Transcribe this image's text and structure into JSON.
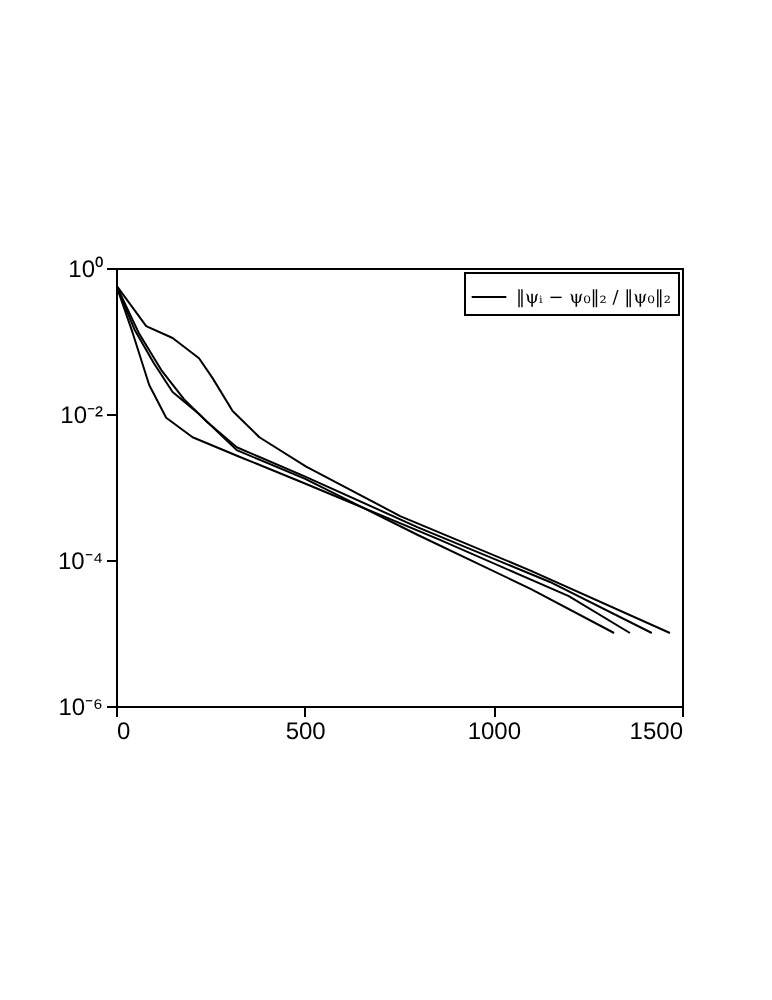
{
  "chart_data": {
    "type": "line",
    "log": "y",
    "legend": "top right",
    "grid": false,
    "marker": "none",
    "line_style": "solid",
    "xlim": [
      0,
      1500
    ],
    "xticks": [
      0,
      500,
      1000,
      1500
    ],
    "ylim": [
      1e-06,
      1
    ],
    "yticks": [
      {
        "value": 1,
        "label": "10⁰"
      },
      {
        "value": 0.01,
        "label": "10⁻²"
      },
      {
        "value": 0.0001,
        "label": "10⁻⁴"
      },
      {
        "value": 1e-06,
        "label": "10⁻⁶"
      }
    ],
    "series": [
      {
        "name": "‖ψᵢ − ψ₀‖₂ / ‖ψ₀‖₂",
        "color": "#000000",
        "x": [
          0,
          60,
          120,
          180,
          240,
          320,
          500,
          800,
          1150,
          1420
        ],
        "values": [
          0.59,
          0.13,
          0.04,
          0.016,
          0.0079,
          0.0035,
          0.0014,
          0.00028,
          5e-05,
          1e-05
        ]
      },
      {
        "color": "#000000",
        "x": [
          0,
          80,
          150,
          220,
          256,
          309,
          380,
          504,
          753,
          1100,
          1468
        ],
        "values": [
          0.59,
          0.16,
          0.11,
          0.058,
          0.031,
          0.011,
          0.0048,
          0.0019,
          0.0004,
          7.1e-05,
          1e-05
        ]
      },
      {
        "color": "#000000",
        "x": [
          0,
          44,
          88,
          133,
          203,
          327,
          504,
          857,
          1200,
          1362
        ],
        "values": [
          0.59,
          0.13,
          0.025,
          0.0089,
          0.0048,
          0.0026,
          0.0011,
          0.00019,
          3.2e-05,
          1e-05
        ]
      },
      {
        "color": "#000000",
        "x": [
          0,
          50,
          100,
          150,
          220,
          320,
          500,
          800,
          1100,
          1320
        ],
        "values": [
          0.59,
          0.14,
          0.05,
          0.02,
          0.01,
          0.0032,
          0.0013,
          0.00022,
          4e-05,
          1e-05
        ]
      }
    ]
  }
}
